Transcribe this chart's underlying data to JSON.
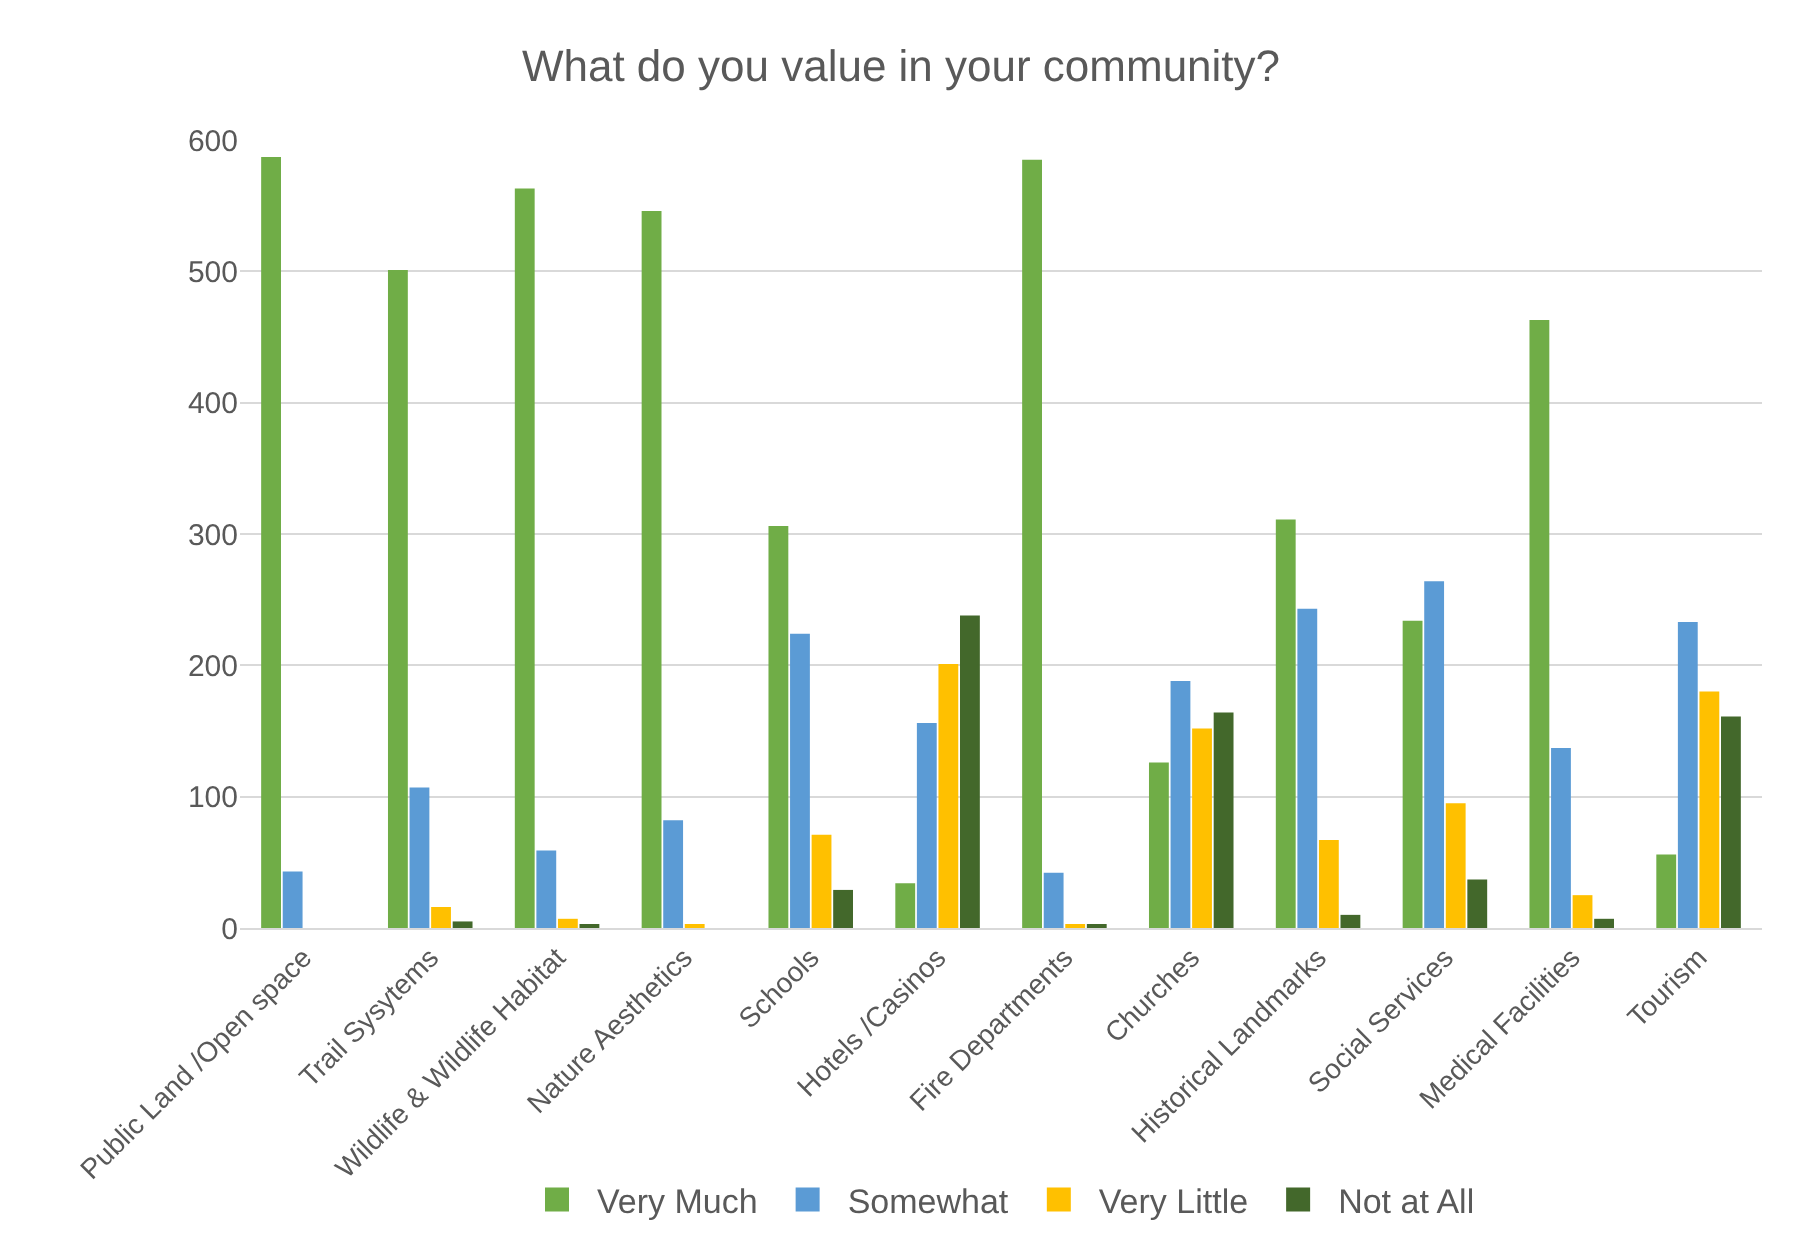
{
  "chart_data": {
    "type": "bar",
    "title": "What do you value in your community?",
    "categories": [
      "Public Land /Open space",
      "Trail Sysytems",
      "Wildlife & Wildlife Habitat",
      "Nature Aesthetics",
      "Schools",
      "Hotels /Casinos",
      "Fire Departments",
      "Churches",
      "Historical Landmarks",
      "Social Services",
      "Medical Facilities",
      "Tourism"
    ],
    "series": [
      {
        "name": "Very Much",
        "color": "#70ad47",
        "values": [
          587,
          501,
          563,
          546,
          306,
          34,
          585,
          126,
          311,
          234,
          463,
          56
        ]
      },
      {
        "name": "Somewhat",
        "color": "#5b9bd5",
        "values": [
          43,
          107,
          59,
          82,
          224,
          156,
          42,
          188,
          243,
          264,
          137,
          233
        ]
      },
      {
        "name": "Very Little",
        "color": "#ffc000",
        "values": [
          0,
          16,
          7,
          3,
          71,
          201,
          2,
          152,
          67,
          95,
          25,
          180
        ]
      },
      {
        "name": "Not at All",
        "color": "#43682b",
        "values": [
          0,
          5,
          2,
          0,
          29,
          238,
          2,
          164,
          10,
          37,
          7,
          161
        ]
      }
    ],
    "ylim": [
      0,
      600
    ],
    "yticks": [
      0,
      100,
      200,
      300,
      400,
      500,
      600
    ],
    "grid": "y",
    "legend": "bottom"
  }
}
